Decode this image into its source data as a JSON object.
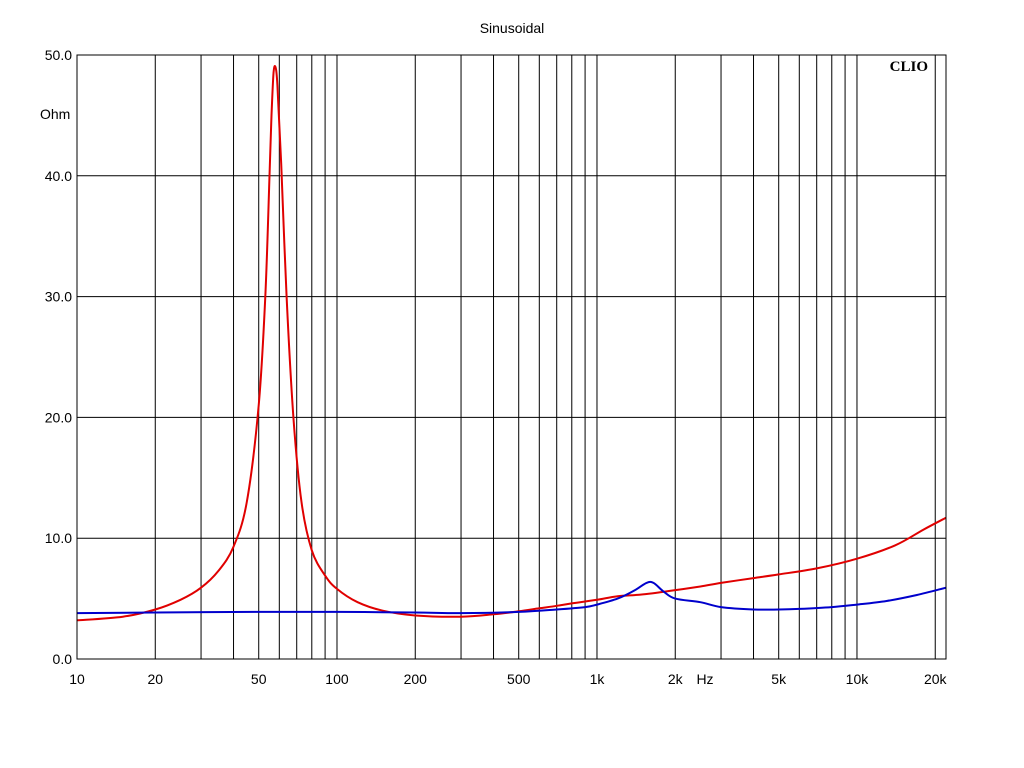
{
  "chart_data": {
    "type": "line",
    "title": "Sinusoidal",
    "brand": "CLIO",
    "ylabel": "Ohm",
    "xunit": "Hz",
    "xscale": "log",
    "xlim": [
      10,
      22000
    ],
    "ylim": [
      0,
      50
    ],
    "grid": true,
    "x_ticks": [
      {
        "value": 10,
        "label": "10"
      },
      {
        "value": 20,
        "label": "20"
      },
      {
        "value": 50,
        "label": "50"
      },
      {
        "value": 100,
        "label": "100"
      },
      {
        "value": 200,
        "label": "200"
      },
      {
        "value": 500,
        "label": "500"
      },
      {
        "value": 1000,
        "label": "1k"
      },
      {
        "value": 2000,
        "label": "2k"
      },
      {
        "value": 5000,
        "label": "5k"
      },
      {
        "value": 10000,
        "label": "10k"
      },
      {
        "value": 20000,
        "label": "20k"
      }
    ],
    "y_ticks": [
      {
        "value": 0,
        "label": "0.0"
      },
      {
        "value": 10,
        "label": "10.0"
      },
      {
        "value": 20,
        "label": "20.0"
      },
      {
        "value": 30,
        "label": "30.0"
      },
      {
        "value": 40,
        "label": "40.0"
      },
      {
        "value": 50,
        "label": "50.0"
      }
    ],
    "series": [
      {
        "color": "#e00000",
        "points": [
          [
            10,
            3.2
          ],
          [
            15,
            3.5
          ],
          [
            20,
            4.1
          ],
          [
            25,
            4.9
          ],
          [
            30,
            5.9
          ],
          [
            35,
            7.3
          ],
          [
            40,
            9.3
          ],
          [
            45,
            13.0
          ],
          [
            50,
            21.0
          ],
          [
            53,
            30.0
          ],
          [
            55,
            40.0
          ],
          [
            56,
            45.0
          ],
          [
            57,
            48.5
          ],
          [
            58,
            49.0
          ],
          [
            59,
            47.5
          ],
          [
            61,
            41.0
          ],
          [
            64,
            30.0
          ],
          [
            68,
            20.0
          ],
          [
            73,
            13.0
          ],
          [
            80,
            9.0
          ],
          [
            90,
            6.9
          ],
          [
            100,
            5.8
          ],
          [
            120,
            4.7
          ],
          [
            150,
            4.0
          ],
          [
            200,
            3.6
          ],
          [
            300,
            3.5
          ],
          [
            400,
            3.7
          ],
          [
            500,
            3.95
          ],
          [
            600,
            4.2
          ],
          [
            700,
            4.4
          ],
          [
            800,
            4.6
          ],
          [
            1000,
            4.9
          ],
          [
            1200,
            5.2
          ],
          [
            1500,
            5.35
          ],
          [
            2000,
            5.7
          ],
          [
            2500,
            6.0
          ],
          [
            3000,
            6.3
          ],
          [
            4000,
            6.7
          ],
          [
            5000,
            7.0
          ],
          [
            7000,
            7.5
          ],
          [
            10000,
            8.3
          ],
          [
            14000,
            9.4
          ],
          [
            18000,
            10.7
          ],
          [
            22000,
            11.7
          ]
        ]
      },
      {
        "color": "#0000cc",
        "points": [
          [
            10,
            3.8
          ],
          [
            20,
            3.85
          ],
          [
            50,
            3.9
          ],
          [
            100,
            3.9
          ],
          [
            200,
            3.85
          ],
          [
            300,
            3.8
          ],
          [
            500,
            3.9
          ],
          [
            700,
            4.1
          ],
          [
            900,
            4.3
          ],
          [
            1000,
            4.5
          ],
          [
            1200,
            5.0
          ],
          [
            1400,
            5.7
          ],
          [
            1550,
            6.3
          ],
          [
            1650,
            6.3
          ],
          [
            1800,
            5.6
          ],
          [
            2000,
            5.0
          ],
          [
            2500,
            4.7
          ],
          [
            3000,
            4.3
          ],
          [
            4000,
            4.1
          ],
          [
            5000,
            4.1
          ],
          [
            6000,
            4.15
          ],
          [
            8000,
            4.3
          ],
          [
            10000,
            4.5
          ],
          [
            13000,
            4.8
          ],
          [
            17000,
            5.3
          ],
          [
            22000,
            5.9
          ]
        ]
      }
    ]
  }
}
